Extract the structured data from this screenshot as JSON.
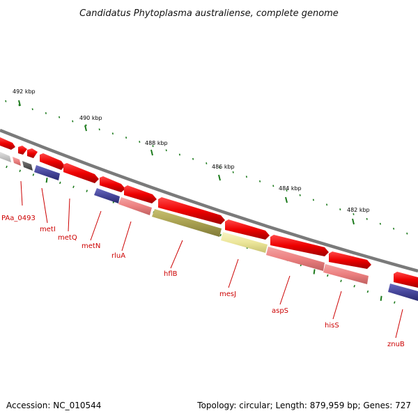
{
  "title": "Candidatus Phytoplasma australiense, complete genome",
  "footer": {
    "accession": "Accession: NC_010544",
    "topology": "Topology: circular; Length: 879,959 bp; Genes: 727"
  },
  "kbp_labels": [
    "492 kbp",
    "490 kbp",
    "488 kbp",
    "486 kbp",
    "484 kbp",
    "482 kbp"
  ],
  "gene_labels": [
    "PAa_0493",
    "metI",
    "metQ",
    "metN",
    "rluA",
    "hflB",
    "mesJ",
    "aspS",
    "hisS",
    "znuB"
  ],
  "colors": {
    "backbone": "#7a7a7a",
    "forward": "#ee0000",
    "reverse_pink": "#ee8080",
    "reverse_blue": "#46469a",
    "reverse_olive": "#a8a050",
    "reverse_yellow": "#ece69a",
    "reverse_gray": "#c8c8c8",
    "reverse_dark": "#555555",
    "ticks": "#1c7a1c",
    "label": "#cc0000"
  }
}
